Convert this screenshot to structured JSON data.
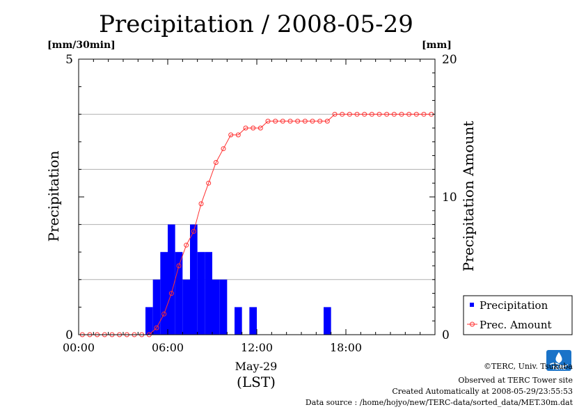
{
  "chart_data": {
    "type": "bar+line",
    "title": "Precipitation / 2008-05-29",
    "y_left_unit": "[mm/30min]",
    "y_right_unit": "[mm]",
    "y_left_label": "Precipitation",
    "y_right_label": "Precipitation Amount",
    "y_left_range": [
      0,
      5
    ],
    "y_right_range": [
      0,
      20
    ],
    "y_left_ticks": [
      "0",
      "5"
    ],
    "y_right_ticks": [
      "0",
      "10",
      "20"
    ],
    "x_range_hours": [
      0,
      24
    ],
    "x_ticks": [
      "00:00",
      "06:00",
      "12:00",
      "18:00"
    ],
    "x_tick_hours": [
      0,
      6,
      12,
      18
    ],
    "x_date_label": "May-29",
    "x_label": "(LST)",
    "grid": "horizontal",
    "legend_position": "right",
    "colors": {
      "bars": "#0000ff",
      "line": "#ff3030",
      "grid": "#b0b0b0"
    },
    "x_times": [
      "00:00",
      "00:30",
      "01:00",
      "01:30",
      "02:00",
      "02:30",
      "03:00",
      "03:30",
      "04:00",
      "04:30",
      "05:00",
      "05:30",
      "06:00",
      "06:30",
      "07:00",
      "07:30",
      "08:00",
      "08:30",
      "09:00",
      "09:30",
      "10:00",
      "10:30",
      "11:00",
      "11:30",
      "12:00",
      "12:30",
      "13:00",
      "13:30",
      "14:00",
      "14:30",
      "15:00",
      "15:30",
      "16:00",
      "16:30",
      "17:00",
      "17:30",
      "18:00",
      "18:30",
      "19:00",
      "19:30",
      "20:00",
      "20:30",
      "21:00",
      "21:30",
      "22:00",
      "22:30",
      "23:00",
      "23:30"
    ],
    "series": [
      {
        "name": "Precipitation",
        "kind": "bar",
        "axis": "left",
        "values": [
          0,
          0,
          0,
          0,
          0,
          0,
          0,
          0,
          0,
          0.5,
          1.0,
          1.5,
          2.0,
          1.5,
          1.0,
          2.0,
          1.5,
          1.5,
          1.0,
          1.0,
          0,
          0.5,
          0,
          0.5,
          0,
          0,
          0,
          0,
          0,
          0,
          0,
          0,
          0,
          0.5,
          0,
          0,
          0,
          0,
          0,
          0,
          0,
          0,
          0,
          0,
          0,
          0,
          0,
          0
        ]
      },
      {
        "name": "Prec. Amount",
        "kind": "line",
        "axis": "right",
        "values": [
          0,
          0,
          0,
          0,
          0,
          0,
          0,
          0,
          0,
          0,
          0.5,
          1.5,
          3.0,
          5.0,
          6.5,
          7.5,
          9.5,
          11.0,
          12.5,
          13.5,
          14.5,
          14.5,
          15.0,
          15.0,
          15.0,
          15.5,
          15.5,
          15.5,
          15.5,
          15.5,
          15.5,
          15.5,
          15.5,
          15.5,
          16.0,
          16.0,
          16.0,
          16.0,
          16.0,
          16.0,
          16.0,
          16.0,
          16.0,
          16.0,
          16.0,
          16.0,
          16.0,
          16.0
        ]
      }
    ]
  },
  "credits": {
    "copyright": "©TERC, Univ. Tsukuba",
    "observed": "Observed at TERC Tower site",
    "created": "Created Automatically at 2008-05-29/23:55:53",
    "source": "Data source : /home/hojyo/new/TERC-data/sorted_data/MET.30m.dat"
  },
  "logo": {
    "text": "TERC",
    "colors": {
      "primary": "#1a73c8"
    }
  }
}
